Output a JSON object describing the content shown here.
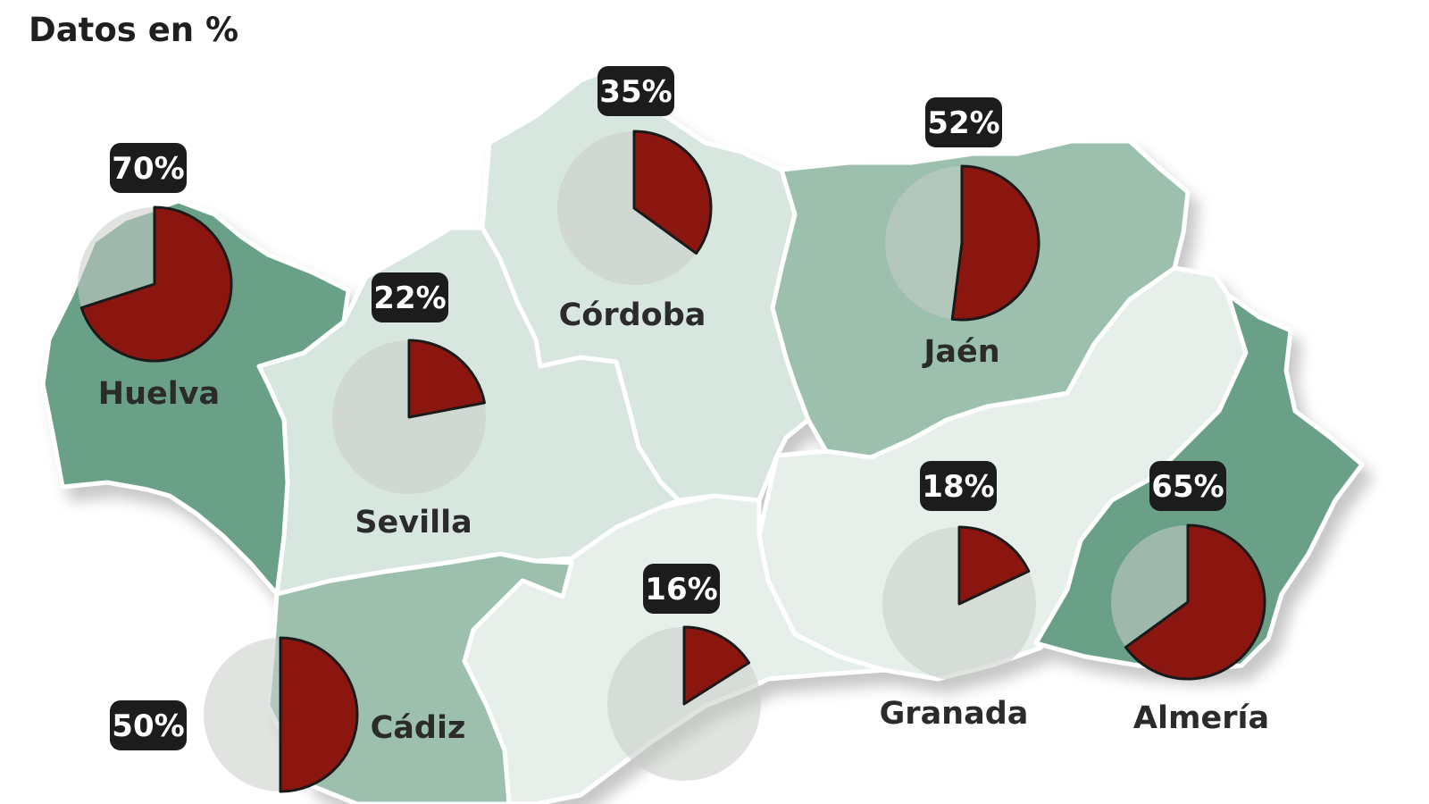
{
  "title": "Datos en %",
  "colors": {
    "dark_green": "#6aa088",
    "mid_green": "#9cc0ad",
    "light_green": "#d7e6de",
    "lightest_green": "#e6efe9",
    "pie_bg": "#c9ccc8",
    "pie_value": "#8b1610",
    "badge_bg": "#1c1c1c"
  },
  "provinces": [
    {
      "id": "huelva",
      "name": "Huelva",
      "percent": 70,
      "value_label": "70%"
    },
    {
      "id": "sevilla",
      "name": "Sevilla",
      "percent": 22,
      "value_label": "22%"
    },
    {
      "id": "cordoba",
      "name": "Córdoba",
      "percent": 35,
      "value_label": "35%"
    },
    {
      "id": "jaen",
      "name": "Jaén",
      "percent": 52,
      "value_label": "52%"
    },
    {
      "id": "cadiz",
      "name": "Cádiz",
      "percent": 50,
      "value_label": "50%"
    },
    {
      "id": "malaga",
      "name": "",
      "percent": 16,
      "value_label": "16%"
    },
    {
      "id": "granada",
      "name": "Granada",
      "percent": 18,
      "value_label": "18%"
    },
    {
      "id": "almeria",
      "name": "Almería",
      "percent": 65,
      "value_label": "65%"
    }
  ]
}
